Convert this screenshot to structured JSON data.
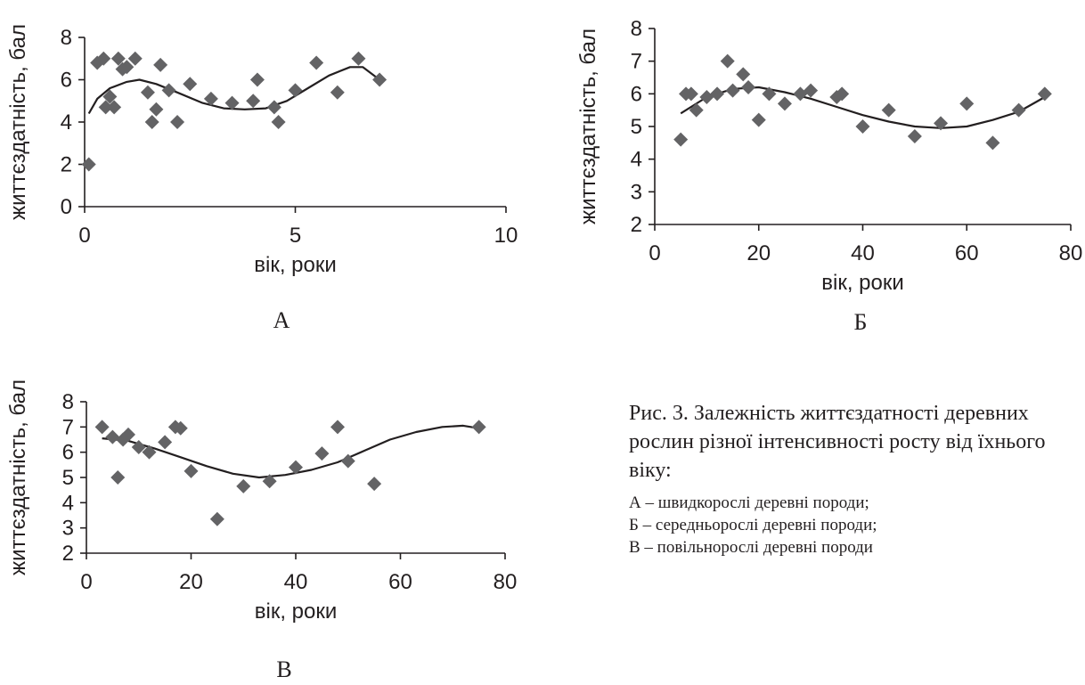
{
  "chart_data": [
    {
      "type": "scatter",
      "panel_label": "А",
      "xlabel": "вік, роки",
      "ylabel": "життєздатність, бал",
      "xlim": [
        0,
        10
      ],
      "ylim": [
        0,
        8
      ],
      "xticks": [
        "0",
        "5",
        "10"
      ],
      "yticks": [
        "0",
        "2",
        "4",
        "6",
        "8"
      ],
      "grid": false,
      "marker_color": "#636365",
      "line_color": "#231f20",
      "points": [
        [
          0.1,
          2.0
        ],
        [
          0.3,
          6.8
        ],
        [
          0.45,
          7.0
        ],
        [
          0.5,
          4.7
        ],
        [
          0.6,
          5.2
        ],
        [
          0.7,
          4.7
        ],
        [
          0.8,
          7.0
        ],
        [
          0.9,
          6.5
        ],
        [
          1.0,
          6.6
        ],
        [
          1.2,
          7.0
        ],
        [
          1.5,
          5.4
        ],
        [
          1.6,
          4.0
        ],
        [
          1.7,
          4.6
        ],
        [
          1.8,
          6.7
        ],
        [
          2.0,
          5.5
        ],
        [
          2.2,
          4.0
        ],
        [
          2.5,
          5.8
        ],
        [
          3.0,
          5.1
        ],
        [
          3.5,
          4.9
        ],
        [
          4.0,
          5.0
        ],
        [
          4.1,
          6.0
        ],
        [
          4.5,
          4.7
        ],
        [
          4.6,
          4.0
        ],
        [
          5.0,
          5.5
        ],
        [
          5.5,
          6.8
        ],
        [
          6.0,
          5.4
        ],
        [
          6.5,
          7.0
        ],
        [
          7.0,
          6.0
        ]
      ],
      "trend": [
        [
          0.1,
          4.4
        ],
        [
          0.3,
          5.1
        ],
        [
          0.6,
          5.6
        ],
        [
          1.0,
          5.9
        ],
        [
          1.3,
          6.0
        ],
        [
          1.7,
          5.8
        ],
        [
          2.2,
          5.4
        ],
        [
          2.8,
          4.9
        ],
        [
          3.3,
          4.65
        ],
        [
          3.8,
          4.6
        ],
        [
          4.3,
          4.65
        ],
        [
          4.8,
          5.0
        ],
        [
          5.3,
          5.6
        ],
        [
          5.8,
          6.2
        ],
        [
          6.3,
          6.6
        ],
        [
          6.6,
          6.6
        ],
        [
          7.0,
          6.0
        ]
      ]
    },
    {
      "type": "scatter",
      "panel_label": "Б",
      "xlabel": "вік, роки",
      "ylabel": "життєздатність, бал",
      "xlim": [
        0,
        80
      ],
      "ylim": [
        2,
        8
      ],
      "xticks": [
        "0",
        "20",
        "40",
        "60",
        "80"
      ],
      "yticks": [
        "2",
        "3",
        "4",
        "5",
        "6",
        "7",
        "8"
      ],
      "grid": false,
      "marker_color": "#636365",
      "line_color": "#231f20",
      "points": [
        [
          5,
          4.6
        ],
        [
          6,
          6.0
        ],
        [
          7,
          6.0
        ],
        [
          8,
          5.5
        ],
        [
          10,
          5.9
        ],
        [
          12,
          6.0
        ],
        [
          14,
          7.0
        ],
        [
          15,
          6.1
        ],
        [
          17,
          6.6
        ],
        [
          18,
          6.2
        ],
        [
          20,
          5.2
        ],
        [
          22,
          6.0
        ],
        [
          25,
          5.7
        ],
        [
          28,
          6.0
        ],
        [
          30,
          6.1
        ],
        [
          35,
          5.9
        ],
        [
          36,
          6.0
        ],
        [
          40,
          5.0
        ],
        [
          45,
          5.5
        ],
        [
          50,
          4.7
        ],
        [
          55,
          5.1
        ],
        [
          60,
          5.7
        ],
        [
          65,
          4.5
        ],
        [
          70,
          5.5
        ],
        [
          75,
          6.0
        ]
      ],
      "trend": [
        [
          5,
          5.4
        ],
        [
          10,
          5.9
        ],
        [
          15,
          6.15
        ],
        [
          20,
          6.2
        ],
        [
          25,
          6.05
        ],
        [
          30,
          5.85
        ],
        [
          35,
          5.6
        ],
        [
          40,
          5.35
        ],
        [
          45,
          5.15
        ],
        [
          50,
          5.0
        ],
        [
          55,
          4.95
        ],
        [
          60,
          5.0
        ],
        [
          65,
          5.2
        ],
        [
          70,
          5.45
        ],
        [
          75,
          5.9
        ]
      ]
    },
    {
      "type": "scatter",
      "panel_label": "В",
      "xlabel": "вік, роки",
      "ylabel": "життєздатність, бал",
      "xlim": [
        0,
        80
      ],
      "ylim": [
        2,
        8
      ],
      "xticks": [
        "0",
        "20",
        "40",
        "60",
        "80"
      ],
      "yticks": [
        "2",
        "3",
        "4",
        "5",
        "6",
        "7",
        "8"
      ],
      "grid": false,
      "marker_color": "#636365",
      "line_color": "#231f20",
      "points": [
        [
          3,
          7.0
        ],
        [
          5,
          6.6
        ],
        [
          6,
          5.0
        ],
        [
          7,
          6.5
        ],
        [
          8,
          6.7
        ],
        [
          10,
          6.2
        ],
        [
          12,
          6.0
        ],
        [
          15,
          6.4
        ],
        [
          17,
          7.0
        ],
        [
          18,
          6.95
        ],
        [
          20,
          5.25
        ],
        [
          25,
          3.35
        ],
        [
          30,
          4.65
        ],
        [
          35,
          4.85
        ],
        [
          40,
          5.4
        ],
        [
          45,
          5.95
        ],
        [
          48,
          7.0
        ],
        [
          50,
          5.65
        ],
        [
          55,
          4.75
        ],
        [
          75,
          7.0
        ]
      ],
      "trend": [
        [
          3,
          6.55
        ],
        [
          8,
          6.45
        ],
        [
          13,
          6.15
        ],
        [
          18,
          5.8
        ],
        [
          23,
          5.45
        ],
        [
          28,
          5.15
        ],
        [
          33,
          5.0
        ],
        [
          38,
          5.1
        ],
        [
          43,
          5.3
        ],
        [
          48,
          5.6
        ],
        [
          53,
          6.05
        ],
        [
          58,
          6.5
        ],
        [
          63,
          6.8
        ],
        [
          68,
          7.0
        ],
        [
          72,
          7.05
        ],
        [
          75,
          6.95
        ]
      ]
    }
  ],
  "caption": {
    "main": "Рис. 3. Залежність життєздатності деревних рослин різної інтенсивності росту від їхнього віку:",
    "items": [
      "А – швидкорослі деревні породи;",
      "Б – середньорослі деревні породи;",
      "В – повільнорослі деревні породи"
    ]
  }
}
